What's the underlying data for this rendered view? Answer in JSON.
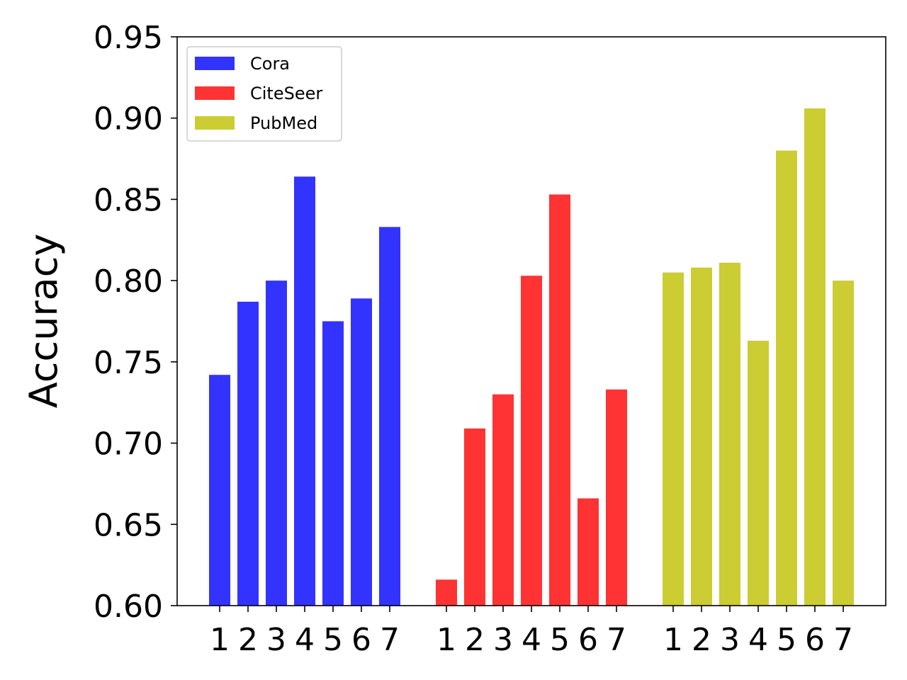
{
  "chart_data": {
    "type": "bar",
    "ylabel": "Accuracy",
    "ylim": [
      0.6,
      0.95
    ],
    "yticks": [
      "0.60",
      "0.65",
      "0.70",
      "0.75",
      "0.80",
      "0.85",
      "0.90",
      "0.95"
    ],
    "categories": [
      "1",
      "2",
      "3",
      "4",
      "5",
      "6",
      "7"
    ],
    "grid": false,
    "legend_position": "top-left",
    "series": [
      {
        "name": "Cora",
        "color": "#3333ff",
        "values": [
          0.742,
          0.787,
          0.8,
          0.864,
          0.775,
          0.789,
          0.833
        ]
      },
      {
        "name": "CiteSeer",
        "color": "#ff3333",
        "values": [
          0.616,
          0.709,
          0.73,
          0.803,
          0.853,
          0.666,
          0.733
        ]
      },
      {
        "name": "PubMed",
        "color": "#cccc33",
        "values": [
          0.805,
          0.808,
          0.811,
          0.763,
          0.88,
          0.906,
          0.8
        ]
      }
    ]
  }
}
